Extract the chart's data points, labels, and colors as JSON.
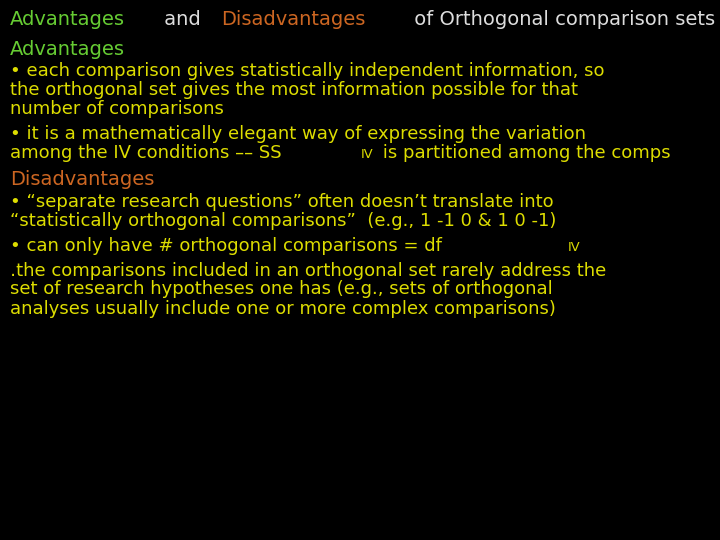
{
  "bg_color": "#000000",
  "title_parts": [
    {
      "text": "Advantages",
      "color": "#66cc33"
    },
    {
      "text": " and ",
      "color": "#dddddd"
    },
    {
      "text": "Disadvantages",
      "color": "#cc6622"
    },
    {
      "text": " of Orthogonal comparison sets",
      "color": "#dddddd"
    }
  ],
  "adv_header_text": "Advantages",
  "adv_header_color": "#66cc33",
  "disadv_header_text": "Disadvantages",
  "disadv_header_color": "#cc6622",
  "body_color": "#dddd00",
  "title_fontsize": 14,
  "header_fontsize": 14,
  "body_fontsize": 13
}
